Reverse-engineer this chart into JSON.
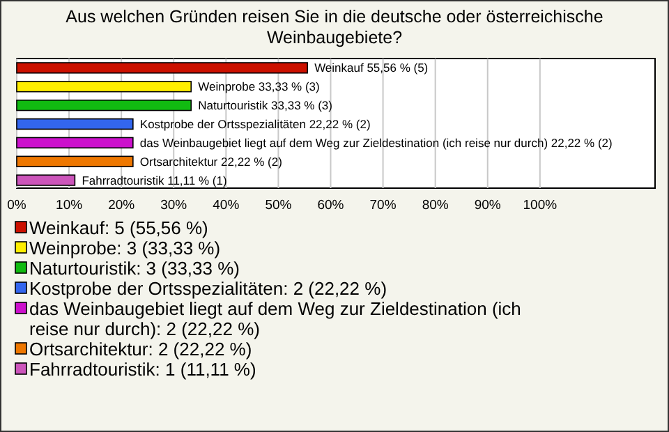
{
  "chart_data": {
    "type": "bar",
    "orientation": "horizontal",
    "title": "Aus welchen Gründen reisen Sie in die deutsche oder österreichische Weinbaugebiete?",
    "categories": [
      "Weinkauf",
      "Weinprobe",
      "Naturtouristik",
      "Kostprobe der Ortsspezialitäten",
      "das Weinbaugebiet liegt auf dem Weg zur Zieldestination (ich reise nur durch)",
      "Ortsarchitektur",
      "Fahrradtouristik"
    ],
    "values": [
      55.56,
      33.33,
      33.33,
      22.22,
      22.22,
      22.22,
      11.11
    ],
    "colors": [
      "#cc1100",
      "#ffee00",
      "#11bb11",
      "#3366ee",
      "#cc11cc",
      "#ee7700",
      "#cc55bb"
    ],
    "value_labels": [
      "55,56 % (5)",
      "33,33 % (3)",
      "33,33 % (3)",
      "22,22 % (2)",
      "22,22 % (2)",
      "22,22 % (2)",
      "11,11 % (1)"
    ],
    "xlim": [
      0,
      122
    ],
    "xticks": [
      {
        "value": 0,
        "label": "0%"
      },
      {
        "value": 10,
        "label": "10%"
      },
      {
        "value": 20,
        "label": "20%"
      },
      {
        "value": 30,
        "label": "30%"
      },
      {
        "value": 40,
        "label": "40%"
      },
      {
        "value": 50,
        "label": "50%"
      },
      {
        "value": 60,
        "label": "60%"
      },
      {
        "value": 70,
        "label": "70%"
      },
      {
        "value": 80,
        "label": "80%"
      },
      {
        "value": 90,
        "label": "90%"
      },
      {
        "value": 100,
        "label": "100%"
      }
    ],
    "grid": "x",
    "annotations": [
      "Weinkauf: 5 (55,56 %)",
      "Weinprobe: 3 (33,33 %)",
      "Naturtouristik: 3 (33,33 %)",
      "Kostprobe der Ortsspezialitäten: 2 (22,22 %)",
      "das Weinbaugebiet liegt auf dem Weg zur Zieldestination (ich reise nur durch): 2 (22,22 %)",
      "Ortsarchitektur: 2 (22,22 %)",
      "Fahrradtouristik: 1 (11,11 %)"
    ]
  }
}
